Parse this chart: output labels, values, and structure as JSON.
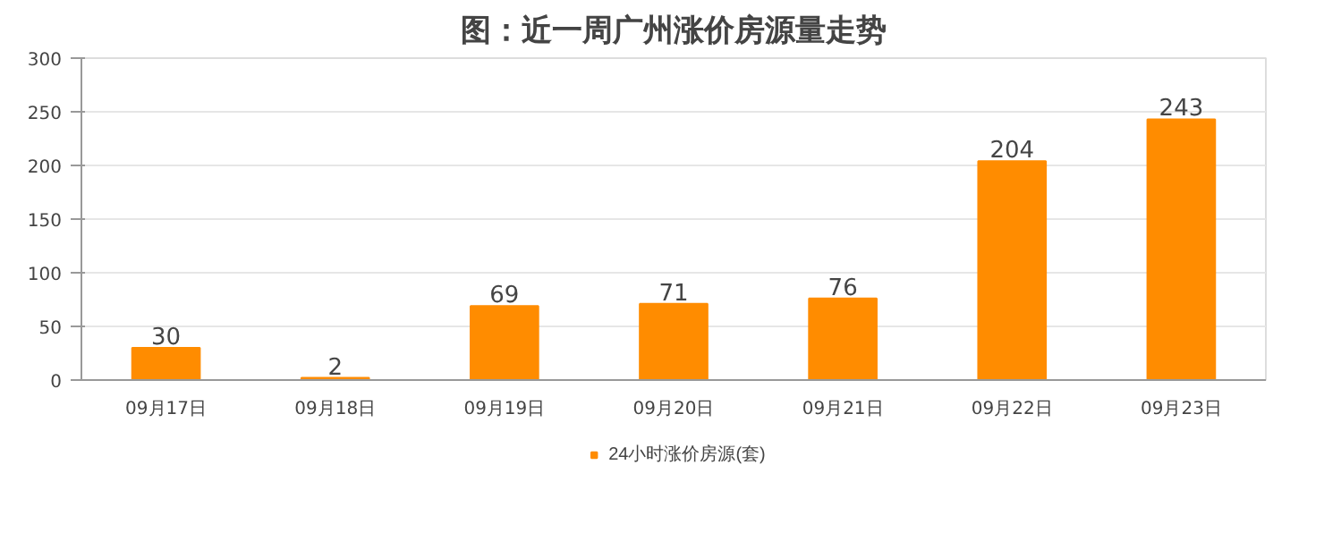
{
  "chart_data": {
    "type": "bar",
    "title": "图：近一周广州涨价房源量走势",
    "categories": [
      "09月17日",
      "09月18日",
      "09月19日",
      "09月20日",
      "09月21日",
      "09月22日",
      "09月23日"
    ],
    "series": [
      {
        "name": "24小时涨价房源(套)",
        "color": "#ff8c00",
        "values": [
          30,
          2,
          69,
          71,
          76,
          204,
          243
        ]
      }
    ],
    "ylim": [
      0,
      300
    ],
    "yticks": [
      0,
      50,
      100,
      150,
      200,
      250,
      300
    ],
    "grid": "y",
    "legend": "bottom",
    "data_labels": true
  }
}
